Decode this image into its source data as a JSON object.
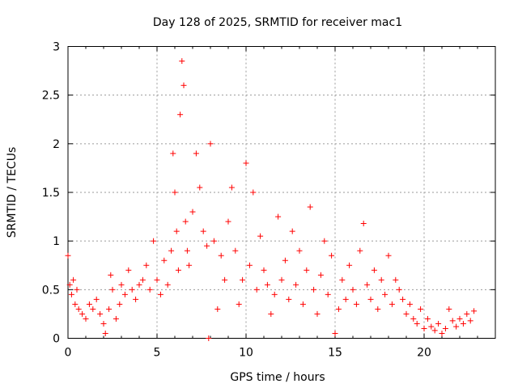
{
  "chart_data": {
    "type": "scatter",
    "title": "Day 128 of 2025, SRMTID for receiver mac1",
    "xlabel": "GPS time / hours",
    "ylabel": "SRMTID / TECUs",
    "xlim": [
      0,
      24
    ],
    "ylim": [
      0,
      3
    ],
    "xticks": [
      0,
      5,
      10,
      15,
      20
    ],
    "xtick_labels": [
      "0",
      "5",
      "10",
      "15",
      "20"
    ],
    "yticks": [
      0,
      0.5,
      1,
      1.5,
      2,
      2.5,
      3
    ],
    "ytick_labels": [
      "0",
      "0.5",
      "1",
      "1.5",
      "2",
      "2.5",
      "3"
    ],
    "grid": true,
    "marker": "plus",
    "color": "#ff0000",
    "series": [
      {
        "name": "SRMTID",
        "x": [
          0.0,
          0.1,
          0.2,
          0.3,
          0.4,
          0.5,
          0.6,
          0.8,
          1.0,
          1.2,
          1.4,
          1.6,
          1.8,
          2.0,
          2.1,
          2.3,
          2.4,
          2.5,
          2.7,
          2.9,
          3.0,
          3.2,
          3.4,
          3.6,
          3.8,
          4.0,
          4.2,
          4.4,
          4.6,
          4.8,
          5.0,
          5.2,
          5.4,
          5.6,
          5.8,
          5.9,
          6.0,
          6.1,
          6.2,
          6.3,
          6.4,
          6.5,
          6.6,
          6.7,
          6.8,
          7.0,
          7.2,
          7.4,
          7.6,
          7.8,
          7.9,
          8.0,
          8.2,
          8.4,
          8.6,
          8.8,
          9.0,
          9.2,
          9.4,
          9.6,
          9.8,
          10.0,
          10.2,
          10.4,
          10.6,
          10.8,
          11.0,
          11.2,
          11.4,
          11.6,
          11.8,
          12.0,
          12.2,
          12.4,
          12.6,
          12.8,
          13.0,
          13.2,
          13.4,
          13.6,
          13.8,
          14.0,
          14.2,
          14.4,
          14.6,
          14.8,
          15.0,
          15.2,
          15.4,
          15.6,
          15.8,
          16.0,
          16.2,
          16.4,
          16.6,
          16.8,
          17.0,
          17.2,
          17.4,
          17.6,
          17.8,
          18.0,
          18.2,
          18.4,
          18.6,
          18.8,
          19.0,
          19.2,
          19.4,
          19.6,
          19.8,
          20.0,
          20.2,
          20.4,
          20.6,
          20.8,
          21.0,
          21.2,
          21.4,
          21.6,
          21.8,
          22.0,
          22.2,
          22.4,
          22.6,
          22.8
        ],
        "y": [
          0.85,
          0.55,
          0.45,
          0.6,
          0.35,
          0.5,
          0.3,
          0.25,
          0.2,
          0.35,
          0.3,
          0.4,
          0.25,
          0.15,
          0.05,
          0.3,
          0.65,
          0.5,
          0.2,
          0.35,
          0.55,
          0.45,
          0.7,
          0.5,
          0.4,
          0.55,
          0.6,
          0.75,
          0.5,
          1.0,
          0.6,
          0.45,
          0.8,
          0.55,
          0.9,
          1.9,
          1.5,
          1.1,
          0.7,
          2.3,
          2.85,
          2.6,
          1.2,
          0.9,
          0.75,
          1.3,
          1.9,
          1.55,
          1.1,
          0.95,
          0.0,
          2.0,
          1.0,
          0.3,
          0.85,
          0.6,
          1.2,
          1.55,
          0.9,
          0.35,
          0.6,
          1.8,
          0.75,
          1.5,
          0.5,
          1.05,
          0.7,
          0.55,
          0.25,
          0.45,
          1.25,
          0.6,
          0.8,
          0.4,
          1.1,
          0.55,
          0.9,
          0.35,
          0.7,
          1.35,
          0.5,
          0.25,
          0.65,
          1.0,
          0.45,
          0.85,
          0.05,
          0.3,
          0.6,
          0.4,
          0.75,
          0.5,
          0.35,
          0.9,
          1.18,
          0.55,
          0.4,
          0.7,
          0.3,
          0.6,
          0.45,
          0.85,
          0.35,
          0.6,
          0.5,
          0.4,
          0.25,
          0.35,
          0.2,
          0.15,
          0.3,
          0.1,
          0.2,
          0.12,
          0.08,
          0.15,
          0.05,
          0.1,
          0.3,
          0.18,
          0.12,
          0.2,
          0.15,
          0.25,
          0.18,
          0.28
        ]
      }
    ]
  }
}
